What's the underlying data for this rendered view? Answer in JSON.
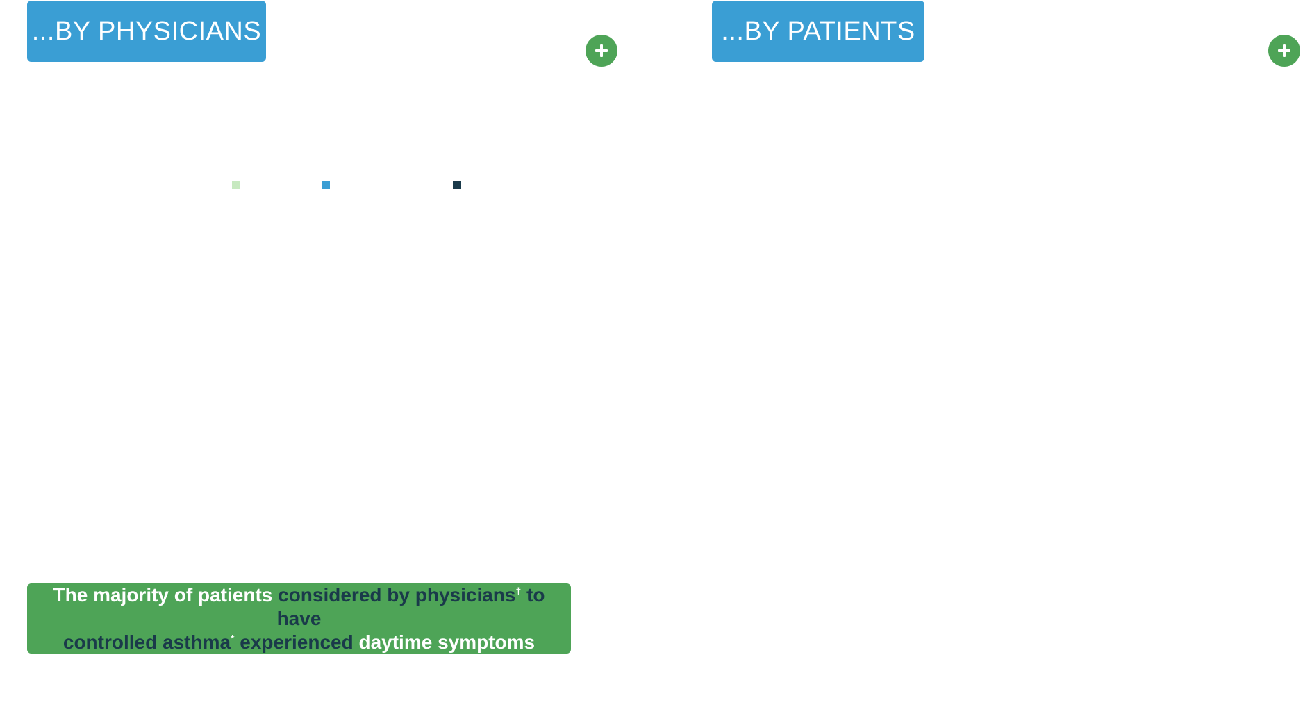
{
  "colors": {
    "tab_blue": "#3a9ed4",
    "plus_green": "#4ea457",
    "callout_green": "#4ea457",
    "white": "#ffffff",
    "dark_navy": "#1a3a4a",
    "legend_light_green": "#c7e9c0",
    "legend_blue": "#3a9ed4",
    "legend_navy": "#1a3a4a"
  },
  "tabs": {
    "physicians_label": "...BY PHYSICIANS",
    "patients_label": "...BY PATIENTS"
  },
  "icons": {
    "plus": "plus-icon"
  },
  "callout": {
    "part1": "The majority of patients ",
    "part2": "considered by physicians",
    "sup1": "†",
    "part3": " to have",
    "part4": "controlled asthma",
    "sup2": "*",
    "part5": " experienced ",
    "part6": "daytime symptoms"
  }
}
